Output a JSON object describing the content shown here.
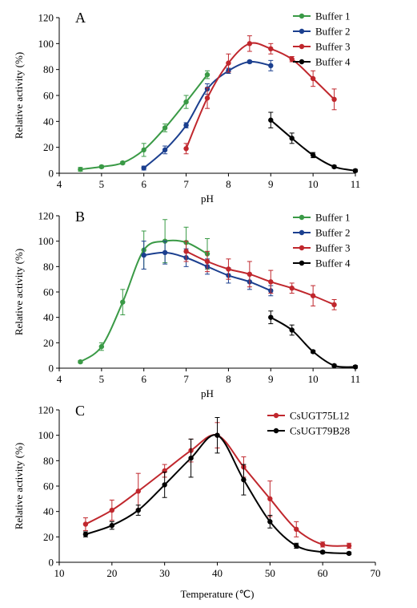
{
  "colors": {
    "green": "#3a9a46",
    "blue": "#1b3f8f",
    "red": "#c0272d",
    "black": "#000000"
  },
  "chart_data": [
    {
      "type": "line",
      "panel_label": "A",
      "xlabel": "pH",
      "ylabel": "Relative activity (%)",
      "xlim": [
        4,
        11
      ],
      "ylim": [
        0,
        120
      ],
      "xticks": [
        "4",
        "5",
        "6",
        "7",
        "8",
        "9",
        "10",
        "11"
      ],
      "yticks": [
        "0",
        "20",
        "40",
        "60",
        "80",
        "100",
        "120"
      ],
      "legend": "top-right",
      "series": [
        {
          "name": "Buffer 1",
          "color": "#3a9a46",
          "x": [
            4.5,
            5.0,
            5.5,
            6.0,
            6.5,
            7.0,
            7.5
          ],
          "values": [
            3,
            5,
            8,
            18,
            35,
            55,
            76
          ],
          "err": [
            1.5,
            1,
            1,
            5,
            3,
            5,
            3
          ]
        },
        {
          "name": "Buffer 2",
          "color": "#1b3f8f",
          "x": [
            6.0,
            6.5,
            7.0,
            7.5,
            8.0,
            8.5,
            9.0
          ],
          "values": [
            4,
            18,
            37,
            65,
            79,
            86,
            83
          ],
          "err": [
            1.5,
            3,
            2,
            4,
            2,
            1,
            4
          ]
        },
        {
          "name": "Buffer 3",
          "color": "#c0272d",
          "x": [
            7.0,
            7.5,
            8.0,
            8.5,
            9.0,
            9.5,
            10.0,
            10.5
          ],
          "values": [
            19,
            58,
            85,
            100,
            96,
            88,
            73,
            57
          ],
          "err": [
            4,
            8,
            7,
            6,
            4,
            2,
            6,
            8
          ]
        },
        {
          "name": "Buffer 4",
          "color": "#000000",
          "x": [
            9.0,
            9.5,
            10.0,
            10.5,
            11.0
          ],
          "values": [
            41,
            27,
            14,
            5,
            2
          ],
          "err": [
            6,
            4,
            2,
            1,
            1
          ]
        }
      ]
    },
    {
      "type": "line",
      "panel_label": "B",
      "xlabel": "pH",
      "ylabel": "Relative activity (%)",
      "xlim": [
        4,
        11
      ],
      "ylim": [
        0,
        120
      ],
      "xticks": [
        "4",
        "5",
        "6",
        "7",
        "8",
        "9",
        "10",
        "11"
      ],
      "yticks": [
        "0",
        "20",
        "40",
        "60",
        "80",
        "100",
        "120"
      ],
      "legend": "top-right",
      "series": [
        {
          "name": "Buffer 1",
          "color": "#3a9a46",
          "x": [
            4.5,
            5.0,
            5.5,
            6.0,
            6.5,
            7.0,
            7.5
          ],
          "values": [
            5,
            17,
            52,
            93,
            100,
            99,
            90
          ],
          "err": [
            1,
            3,
            10,
            15,
            17,
            12,
            12
          ]
        },
        {
          "name": "Buffer 2",
          "color": "#1b3f8f",
          "x": [
            6.0,
            6.5,
            7.0,
            7.5,
            8.0,
            8.5,
            9.0
          ],
          "values": [
            89,
            91,
            87,
            80,
            73,
            68,
            61
          ],
          "err": [
            11,
            9,
            7,
            6,
            6,
            6,
            4
          ]
        },
        {
          "name": "Buffer 3",
          "color": "#c0272d",
          "x": [
            7.0,
            7.5,
            8.0,
            8.5,
            9.0,
            9.5,
            10.0,
            10.5
          ],
          "values": [
            92,
            84,
            78,
            74,
            68,
            63,
            57,
            50
          ],
          "err": [
            8,
            8,
            8,
            10,
            9,
            4,
            8,
            4
          ]
        },
        {
          "name": "Buffer 4",
          "color": "#000000",
          "x": [
            9.0,
            9.5,
            10.0,
            10.5,
            11.0
          ],
          "values": [
            40,
            30,
            13,
            2,
            1
          ],
          "err": [
            5,
            4,
            1,
            1,
            1
          ]
        }
      ]
    },
    {
      "type": "line",
      "panel_label": "C",
      "xlabel": "Temperature (℃)",
      "ylabel": "Relative activity (%)",
      "xlim": [
        10,
        70
      ],
      "ylim": [
        0,
        120
      ],
      "xticks": [
        "10",
        "20",
        "30",
        "40",
        "50",
        "60",
        "70"
      ],
      "yticks": [
        "0",
        "20",
        "40",
        "60",
        "80",
        "100",
        "120"
      ],
      "legend": "top-right",
      "series": [
        {
          "name": "CsUGT75L12",
          "color": "#c0272d",
          "x": [
            15,
            20,
            25,
            30,
            35,
            40,
            45,
            50,
            55,
            60,
            65
          ],
          "values": [
            30,
            41,
            56,
            72,
            88,
            100,
            75,
            50,
            26,
            14,
            13
          ],
          "err": [
            5,
            8,
            14,
            5,
            9,
            10,
            8,
            14,
            6,
            2,
            2
          ]
        },
        {
          "name": "CsUGT79B28",
          "color": "#000000",
          "x": [
            15,
            20,
            25,
            30,
            35,
            40,
            45,
            50,
            55,
            60,
            65
          ],
          "values": [
            22,
            29,
            41,
            61,
            82,
            100,
            65,
            32,
            13,
            8,
            7
          ],
          "err": [
            2,
            3,
            4,
            10,
            15,
            14,
            12,
            5,
            2,
            1,
            1
          ]
        }
      ]
    }
  ]
}
